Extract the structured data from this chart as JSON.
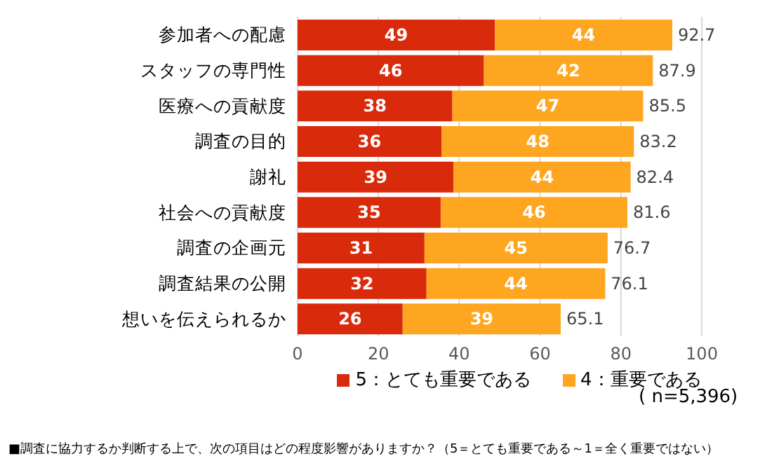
{
  "chart_data": {
    "type": "bar",
    "orientation": "horizontal",
    "stacked": true,
    "categories": [
      "参加者への配慮",
      "スタッフの専門性",
      "医療への貢献度",
      "調査の目的",
      "謝礼",
      "社会への貢献度",
      "調査の企画元",
      "調査結果の公開",
      "想いを伝えられるか"
    ],
    "series": [
      {
        "name": "5：とても重要である",
        "color": "#d92b0c",
        "values": [
          48.8,
          46.1,
          38.3,
          35.6,
          38.6,
          35.4,
          31.4,
          31.9,
          26.0
        ],
        "value_labels": [
          "49",
          "46",
          "38",
          "36",
          "39",
          "35",
          "31",
          "32",
          "26"
        ]
      },
      {
        "name": "4：重要である",
        "color": "#ffa620",
        "values": [
          43.9,
          41.8,
          47.2,
          47.6,
          43.8,
          46.2,
          45.3,
          44.2,
          39.1
        ],
        "value_labels": [
          "44",
          "42",
          "47",
          "48",
          "44",
          "46",
          "45",
          "44",
          "39"
        ]
      }
    ],
    "totals": [
      "92.7",
      "87.9",
      "85.5",
      "83.2",
      "82.4",
      "81.6",
      "76.7",
      "76.1",
      "65.1"
    ],
    "xlim": [
      0,
      100
    ],
    "xticks": [
      0,
      20,
      40,
      60,
      80,
      100
    ],
    "grid": "x",
    "legend": "bottom",
    "annotations": [
      "( n=5,396)",
      "■調査に協力するか判断する上で、次の項目はどの程度影響がありますか？（5＝とても重要である～1＝全く重要ではない）"
    ]
  }
}
